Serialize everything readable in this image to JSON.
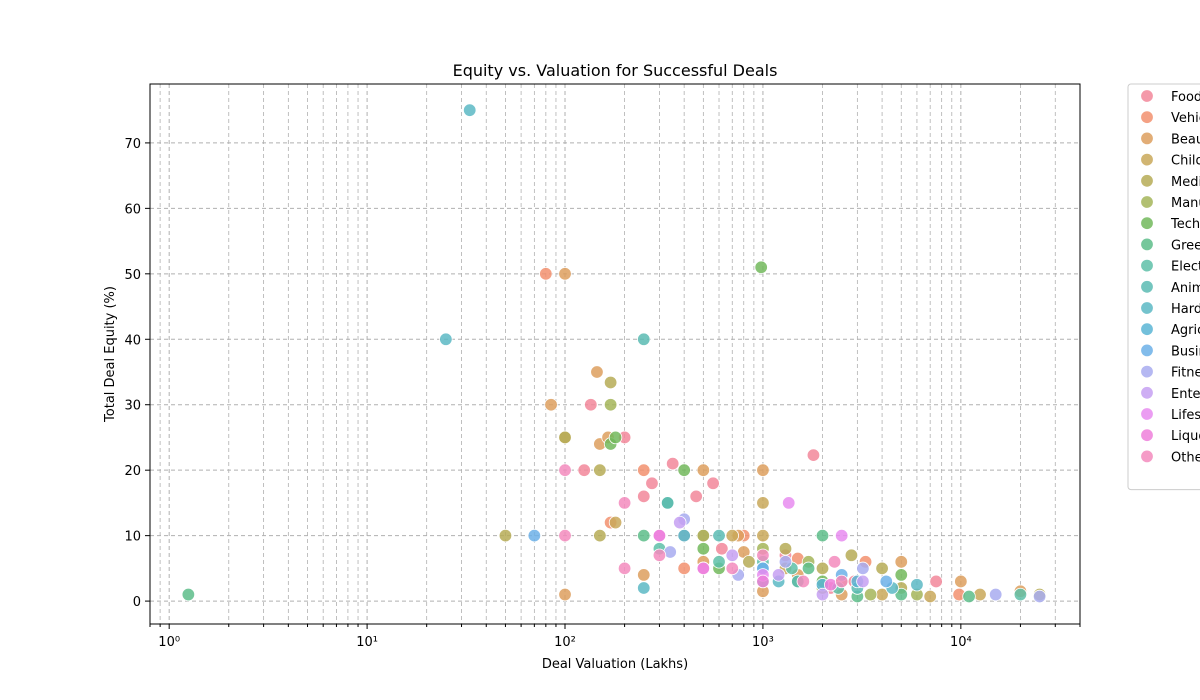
{
  "chart_data": {
    "type": "scatter",
    "title": "Equity vs. Valuation for Successful Deals",
    "xlabel": "Deal Valuation (Lakhs)",
    "ylabel": "Total Deal Equity (%)",
    "x_scale": "log",
    "xlim": [
      0.8,
      40000
    ],
    "ylim": [
      -3.5,
      79
    ],
    "x_ticks": [
      {
        "value": 1,
        "label": "10⁰"
      },
      {
        "value": 10,
        "label": "10¹"
      },
      {
        "value": 100,
        "label": "10²"
      },
      {
        "value": 1000,
        "label": "10³"
      },
      {
        "value": 10000,
        "label": "10⁴"
      }
    ],
    "y_ticks": [
      0,
      10,
      20,
      30,
      40,
      50,
      60,
      70
    ],
    "grid": true,
    "legend_position": "outside-right",
    "series": [
      {
        "name": "Food",
        "color": "#f2879a",
        "points": [
          [
            125,
            20
          ],
          [
            135,
            30
          ],
          [
            200,
            25
          ],
          [
            250,
            16
          ],
          [
            275,
            18
          ],
          [
            350,
            21
          ],
          [
            460,
            16
          ],
          [
            560,
            18
          ],
          [
            620,
            8
          ],
          [
            1300,
            7
          ],
          [
            1800,
            22.3
          ],
          [
            2200,
            2
          ],
          [
            2900,
            3
          ],
          [
            7500,
            3
          ]
        ]
      },
      {
        "name": "Vehicles",
        "color": "#f2906e",
        "points": [
          [
            80,
            50
          ],
          [
            170,
            12
          ],
          [
            250,
            20
          ],
          [
            400,
            5
          ],
          [
            500,
            10
          ],
          [
            800,
            10
          ],
          [
            1500,
            6.5
          ],
          [
            3300,
            6
          ],
          [
            9800,
            1
          ]
        ]
      },
      {
        "name": "Beauty",
        "color": "#dd9f5e",
        "points": [
          [
            85,
            30
          ],
          [
            100,
            50
          ],
          [
            100,
            1
          ],
          [
            145,
            35
          ],
          [
            150,
            24
          ],
          [
            165,
            25
          ],
          [
            250,
            4
          ],
          [
            500,
            20
          ],
          [
            500,
            6
          ],
          [
            750,
            10
          ],
          [
            800,
            7.5
          ],
          [
            1000,
            20
          ],
          [
            1000,
            1.5
          ],
          [
            1500,
            4
          ],
          [
            2500,
            1
          ],
          [
            5000,
            6
          ],
          [
            10000,
            3
          ],
          [
            20000,
            1.5
          ]
        ]
      },
      {
        "name": "Children",
        "color": "#c9a859",
        "points": [
          [
            100,
            25
          ],
          [
            180,
            12
          ],
          [
            700,
            10
          ],
          [
            1000,
            15
          ],
          [
            1000,
            10
          ],
          [
            1300,
            5
          ],
          [
            2500,
            3
          ],
          [
            4000,
            1
          ],
          [
            7000,
            0.7
          ],
          [
            12500,
            1
          ]
        ]
      },
      {
        "name": "Medical",
        "color": "#b6ac56",
        "points": [
          [
            50,
            10
          ],
          [
            100,
            25
          ],
          [
            150,
            10
          ],
          [
            150,
            20
          ],
          [
            170,
            33.4
          ],
          [
            400,
            10
          ],
          [
            850,
            6
          ],
          [
            1300,
            8
          ],
          [
            2000,
            5
          ],
          [
            2800,
            7
          ],
          [
            4000,
            5
          ],
          [
            5000,
            2
          ],
          [
            25000,
            1
          ]
        ]
      },
      {
        "name": "Manufacturing",
        "color": "#a4b559",
        "points": [
          [
            170,
            30
          ],
          [
            500,
            10
          ],
          [
            1000,
            8
          ],
          [
            1700,
            6
          ],
          [
            2000,
            2
          ],
          [
            3500,
            1
          ],
          [
            6000,
            1
          ]
        ]
      },
      {
        "name": "Technology",
        "color": "#72b85c",
        "points": [
          [
            170,
            24
          ],
          [
            180,
            25
          ],
          [
            400,
            20
          ],
          [
            500,
            8
          ],
          [
            600,
            5
          ],
          [
            980,
            51
          ],
          [
            1500,
            3
          ],
          [
            2000,
            3
          ],
          [
            5000,
            4
          ]
        ]
      },
      {
        "name": "Green",
        "color": "#5dbd8a",
        "points": [
          [
            1.25,
            1
          ],
          [
            250,
            10
          ],
          [
            330,
            15
          ],
          [
            1000,
            3
          ],
          [
            1700,
            5
          ],
          [
            2000,
            10
          ],
          [
            3000,
            0.7
          ],
          [
            5000,
            1
          ],
          [
            11000,
            0.7
          ]
        ]
      },
      {
        "name": "Electronics",
        "color": "#5ebfa8",
        "points": [
          [
            300,
            8
          ],
          [
            600,
            6
          ],
          [
            1000,
            6
          ],
          [
            1400,
            5
          ],
          [
            2400,
            2
          ],
          [
            20000,
            1
          ]
        ]
      },
      {
        "name": "Animal",
        "color": "#5bbbb3",
        "points": [
          [
            250,
            40
          ],
          [
            330,
            15
          ],
          [
            600,
            10
          ],
          [
            1500,
            3
          ],
          [
            3000,
            2
          ]
        ]
      },
      {
        "name": "Hardware",
        "color": "#5cb8c4",
        "points": [
          [
            33,
            75
          ],
          [
            25,
            40
          ],
          [
            250,
            2
          ],
          [
            1200,
            3
          ],
          [
            4500,
            2
          ],
          [
            6000,
            2.5
          ]
        ]
      },
      {
        "name": "Agriculture",
        "color": "#5ab5d5",
        "points": [
          [
            400,
            10
          ],
          [
            1000,
            5
          ],
          [
            2000,
            2.5
          ],
          [
            3000,
            3
          ]
        ]
      },
      {
        "name": "Business",
        "color": "#6cb0e8",
        "points": [
          [
            70,
            10
          ],
          [
            1000,
            5
          ],
          [
            2500,
            4
          ],
          [
            4200,
            3
          ]
        ]
      },
      {
        "name": "Fitness",
        "color": "#a8acf0",
        "points": [
          [
            340,
            7.5
          ],
          [
            400,
            12.5
          ],
          [
            750,
            4
          ],
          [
            1300,
            6
          ],
          [
            3200,
            5
          ],
          [
            15000,
            1
          ],
          [
            25000,
            0.7
          ]
        ]
      },
      {
        "name": "Entertainment",
        "color": "#c5a0f2",
        "points": [
          [
            380,
            12
          ],
          [
            700,
            7
          ],
          [
            1200,
            4
          ],
          [
            2000,
            1
          ],
          [
            3200,
            3
          ]
        ]
      },
      {
        "name": "Lifestyle",
        "color": "#e78cf0",
        "points": [
          [
            300,
            10
          ],
          [
            500,
            5
          ],
          [
            1350,
            15
          ],
          [
            2500,
            10
          ],
          [
            1000,
            4
          ]
        ]
      },
      {
        "name": "Liquor",
        "color": "#ef7fda",
        "points": [
          [
            300,
            10
          ],
          [
            500,
            5
          ],
          [
            1000,
            3
          ],
          [
            2200,
            2.5
          ]
        ]
      },
      {
        "name": "Other",
        "color": "#f38bbd",
        "points": [
          [
            100,
            20
          ],
          [
            100,
            10
          ],
          [
            200,
            5
          ],
          [
            200,
            15
          ],
          [
            300,
            7
          ],
          [
            700,
            5
          ],
          [
            1000,
            7
          ],
          [
            1600,
            3
          ],
          [
            2300,
            6
          ],
          [
            2500,
            3
          ]
        ]
      }
    ]
  }
}
